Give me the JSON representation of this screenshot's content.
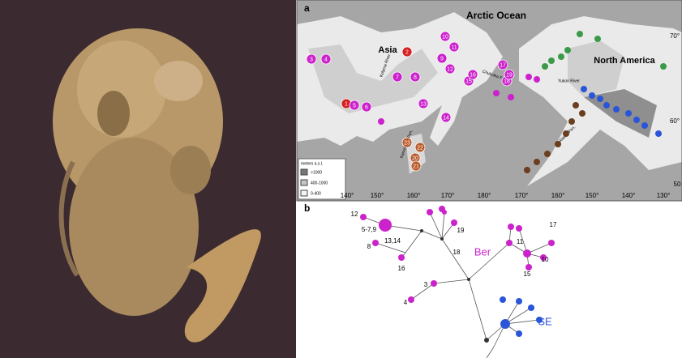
{
  "panel_a": {
    "label": "a",
    "ocean": "Arctic Ocean",
    "continents": [
      "Asia",
      "North America"
    ],
    "rivers": [
      "Kolyma River",
      "Yukon River",
      "Chukotka Pen.",
      "Kamchatka Pen.",
      "Alaska Pen."
    ],
    "legend": {
      "title": "meters a.s.l.",
      "items": [
        ">1000",
        "400-1000",
        "0-400"
      ]
    },
    "longitudes": [
      "140°",
      "150°",
      "160°",
      "170°",
      "180°",
      "170°",
      "160°",
      "150°",
      "140°",
      "130°"
    ],
    "latitudes": [
      "70°",
      "60°",
      "50"
    ],
    "sites": [
      "1",
      "2",
      "3",
      "4",
      "5",
      "6",
      "7",
      "8",
      "9",
      "10",
      "11",
      "12",
      "13",
      "14",
      "15",
      "16",
      "17",
      "18",
      "19",
      "20",
      "21",
      "22",
      "23"
    ]
  },
  "panel_b": {
    "label": "b",
    "groups": [
      "Ber",
      "SE"
    ],
    "node_labels": [
      "12",
      "5-7,9",
      "13,14",
      "8",
      "16",
      "18",
      "19",
      "3",
      "4",
      "11",
      "17",
      "10",
      "15"
    ]
  }
}
